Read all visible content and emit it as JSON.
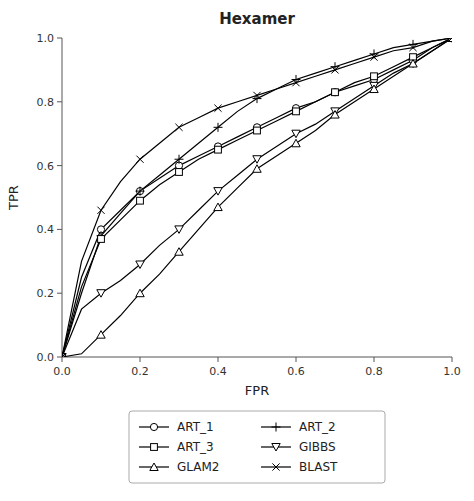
{
  "chart_data": {
    "type": "line",
    "title": "Hexamer",
    "x_label": "FPR",
    "y_label": "TPR",
    "x": [
      0.0,
      0.05,
      0.1,
      0.15,
      0.2,
      0.25,
      0.3,
      0.35,
      0.4,
      0.45,
      0.5,
      0.55,
      0.6,
      0.65,
      0.7,
      0.75,
      0.8,
      0.85,
      0.9,
      0.95,
      1.0
    ],
    "series": [
      {
        "name": "ART_1",
        "color": "#000000",
        "marker": "circle",
        "values": [
          0.0,
          0.25,
          0.4,
          0.46,
          0.52,
          0.56,
          0.6,
          0.63,
          0.66,
          0.69,
          0.72,
          0.75,
          0.78,
          0.8,
          0.83,
          0.85,
          0.87,
          0.9,
          0.93,
          0.97,
          1.0
        ]
      },
      {
        "name": "ART_2",
        "color": "#000000",
        "marker": "plus",
        "values": [
          0.0,
          0.2,
          0.38,
          0.45,
          0.52,
          0.57,
          0.62,
          0.67,
          0.72,
          0.77,
          0.81,
          0.84,
          0.87,
          0.89,
          0.91,
          0.93,
          0.95,
          0.97,
          0.98,
          0.99,
          1.0
        ]
      },
      {
        "name": "ART_3",
        "color": "#000000",
        "marker": "square",
        "values": [
          0.0,
          0.22,
          0.37,
          0.43,
          0.49,
          0.54,
          0.58,
          0.62,
          0.65,
          0.68,
          0.71,
          0.74,
          0.77,
          0.8,
          0.83,
          0.86,
          0.88,
          0.91,
          0.94,
          0.97,
          1.0
        ]
      },
      {
        "name": "GIBBS",
        "color": "#000000",
        "marker": "triangle-down",
        "values": [
          0.0,
          0.15,
          0.2,
          0.24,
          0.29,
          0.35,
          0.4,
          0.46,
          0.52,
          0.57,
          0.62,
          0.66,
          0.7,
          0.73,
          0.77,
          0.81,
          0.85,
          0.89,
          0.92,
          0.96,
          1.0
        ]
      },
      {
        "name": "GLAM2",
        "color": "#000000",
        "marker": "triangle-up",
        "values": [
          0.0,
          0.01,
          0.07,
          0.13,
          0.2,
          0.26,
          0.33,
          0.4,
          0.47,
          0.53,
          0.59,
          0.63,
          0.67,
          0.71,
          0.76,
          0.8,
          0.84,
          0.88,
          0.92,
          0.96,
          1.0
        ]
      },
      {
        "name": "BLAST",
        "color": "#000000",
        "marker": "x",
        "values": [
          0.0,
          0.3,
          0.46,
          0.55,
          0.62,
          0.67,
          0.72,
          0.75,
          0.78,
          0.8,
          0.82,
          0.84,
          0.86,
          0.88,
          0.9,
          0.92,
          0.94,
          0.96,
          0.97,
          0.99,
          1.0
        ]
      }
    ],
    "xlim": [
      0,
      1
    ],
    "ylim": [
      0,
      1
    ],
    "xticks": [
      {
        "value": 0,
        "label": "0.0"
      },
      0.2,
      0.4,
      0.6,
      0.8,
      {
        "value": 1,
        "label": "1.0"
      }
    ],
    "yticks": [
      {
        "value": 0,
        "label": "0.0"
      },
      0.2,
      0.4,
      0.6,
      0.8,
      {
        "value": 1,
        "label": "1.0"
      }
    ],
    "grid": false,
    "legend": "bottom"
  }
}
